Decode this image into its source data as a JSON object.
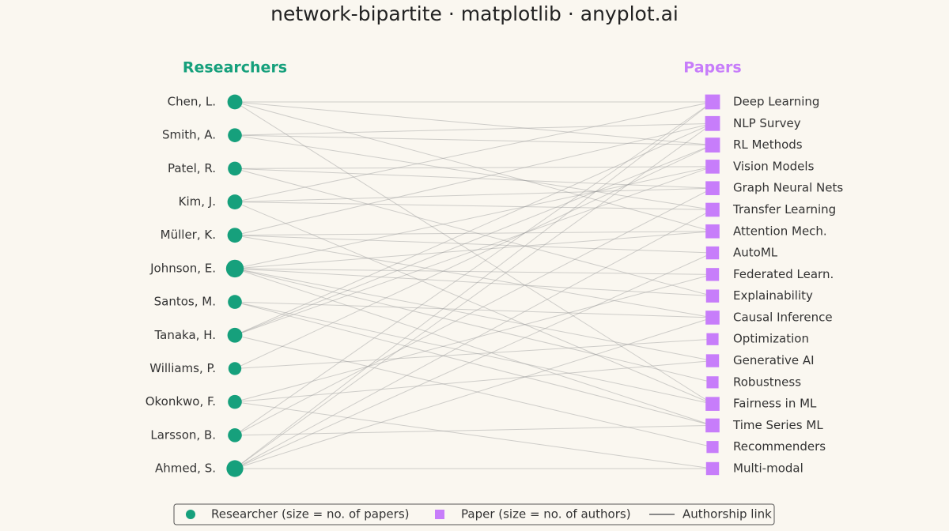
{
  "title": "network-bipartite · matplotlib · anyplot.ai",
  "left_header": "Researchers",
  "right_header": "Papers",
  "researchers": [
    "Chen, L.",
    "Smith, A.",
    "Patel, R.",
    "Kim, J.",
    "Müller, K.",
    "Johnson, E.",
    "Santos, M.",
    "Tanaka, H.",
    "Williams, P.",
    "Okonkwo, F.",
    "Larsson, B.",
    "Ahmed, S."
  ],
  "papers": [
    "Deep Learning",
    "NLP Survey",
    "RL Methods",
    "Vision Models",
    "Graph Neural Nets",
    "Transfer Learning",
    "Attention Mech.",
    "AutoML",
    "Federated Learn.",
    "Explainability",
    "Causal Inference",
    "Optimization",
    "Generative AI",
    "Robustness",
    "Fairness in ML",
    "Time Series ML",
    "Recommenders",
    "Multi-modal"
  ],
  "edges": [
    [
      0,
      0
    ],
    [
      0,
      2
    ],
    [
      0,
      6
    ],
    [
      0,
      14
    ],
    [
      1,
      1
    ],
    [
      1,
      2
    ],
    [
      1,
      5
    ],
    [
      2,
      3
    ],
    [
      2,
      4
    ],
    [
      2,
      9
    ],
    [
      3,
      0
    ],
    [
      3,
      5
    ],
    [
      3,
      14
    ],
    [
      3,
      4
    ],
    [
      4,
      6
    ],
    [
      4,
      7
    ],
    [
      4,
      10
    ],
    [
      4,
      1
    ],
    [
      5,
      3
    ],
    [
      5,
      6
    ],
    [
      5,
      8
    ],
    [
      5,
      9
    ],
    [
      5,
      12
    ],
    [
      5,
      13
    ],
    [
      5,
      15
    ],
    [
      6,
      10
    ],
    [
      6,
      14
    ],
    [
      6,
      15
    ],
    [
      7,
      1
    ],
    [
      7,
      2
    ],
    [
      7,
      3
    ],
    [
      7,
      16
    ],
    [
      8,
      2
    ],
    [
      8,
      11
    ],
    [
      9,
      8
    ],
    [
      9,
      12
    ],
    [
      9,
      17
    ],
    [
      10,
      4
    ],
    [
      10,
      15
    ],
    [
      10,
      0
    ],
    [
      11,
      0
    ],
    [
      11,
      1
    ],
    [
      11,
      5
    ],
    [
      11,
      7
    ],
    [
      11,
      10
    ],
    [
      11,
      17
    ]
  ],
  "legend": {
    "researcher": "Researcher (size = no. of papers)",
    "paper": "Paper (size = no. of authors)",
    "link": "Authorship link"
  }
}
